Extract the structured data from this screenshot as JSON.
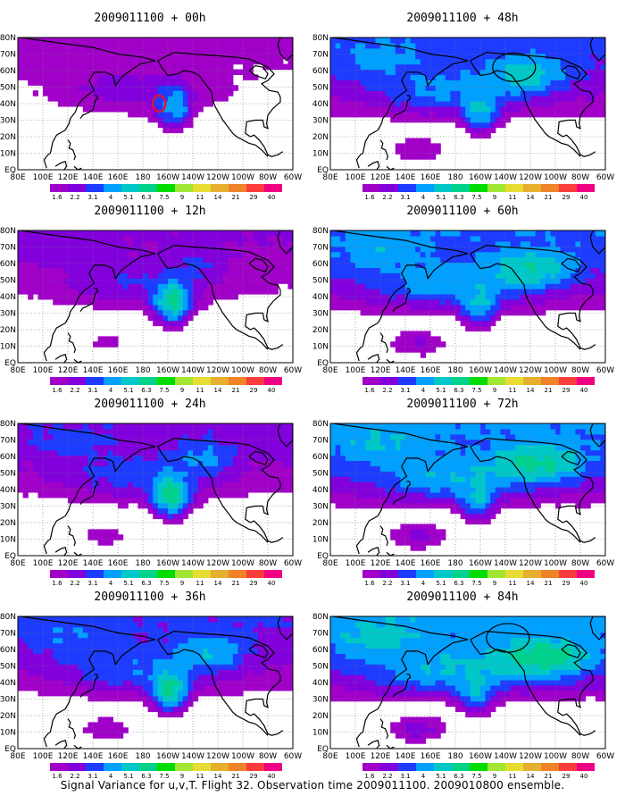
{
  "figure": {
    "caption": "Signal Variance for u,v,T. Flight 32. Observation time 2009011100. 2009010800 ensemble."
  },
  "chart_data": {
    "type": "heatmap",
    "x_ticks": [
      "80E",
      "100E",
      "120E",
      "140E",
      "160E",
      "180",
      "160W",
      "140W",
      "120W",
      "100W",
      "80W",
      "60W"
    ],
    "y_ticks": [
      "EQ",
      "10N",
      "20N",
      "30N",
      "40N",
      "50N",
      "60N",
      "70N",
      "80N"
    ],
    "xlim": [
      "80E",
      "60W"
    ],
    "ylim": [
      "EQ",
      "80N"
    ],
    "grid": true,
    "colorbar": {
      "levels": [
        "1.6",
        "2.2",
        "3.1",
        "4",
        "5.1",
        "6.3",
        "7.5",
        "9",
        "11",
        "14",
        "21",
        "29",
        "40"
      ],
      "colors": [
        "#a000c8",
        "#8200dc",
        "#1e3cff",
        "#00a0ff",
        "#00c8c8",
        "#00d28c",
        "#00dc00",
        "#a0e632",
        "#e6dc32",
        "#e6af2d",
        "#f08228",
        "#fa3c3c",
        "#f00082"
      ]
    },
    "panels": [
      {
        "title": "2009011100 + 00h",
        "hour": 0,
        "marker": "red-circle"
      },
      {
        "title": "2009011100 + 12h",
        "hour": 12
      },
      {
        "title": "2009011100 + 24h",
        "hour": 24
      },
      {
        "title": "2009011100 + 36h",
        "hour": 36
      },
      {
        "title": "2009011100 + 48h",
        "hour": 48,
        "marker": "black-ellipse"
      },
      {
        "title": "2009011100 + 60h",
        "hour": 60
      },
      {
        "title": "2009011100 + 72h",
        "hour": 72
      },
      {
        "title": "2009011100 + 84h",
        "hour": 84,
        "marker": "black-ellipse"
      }
    ]
  }
}
